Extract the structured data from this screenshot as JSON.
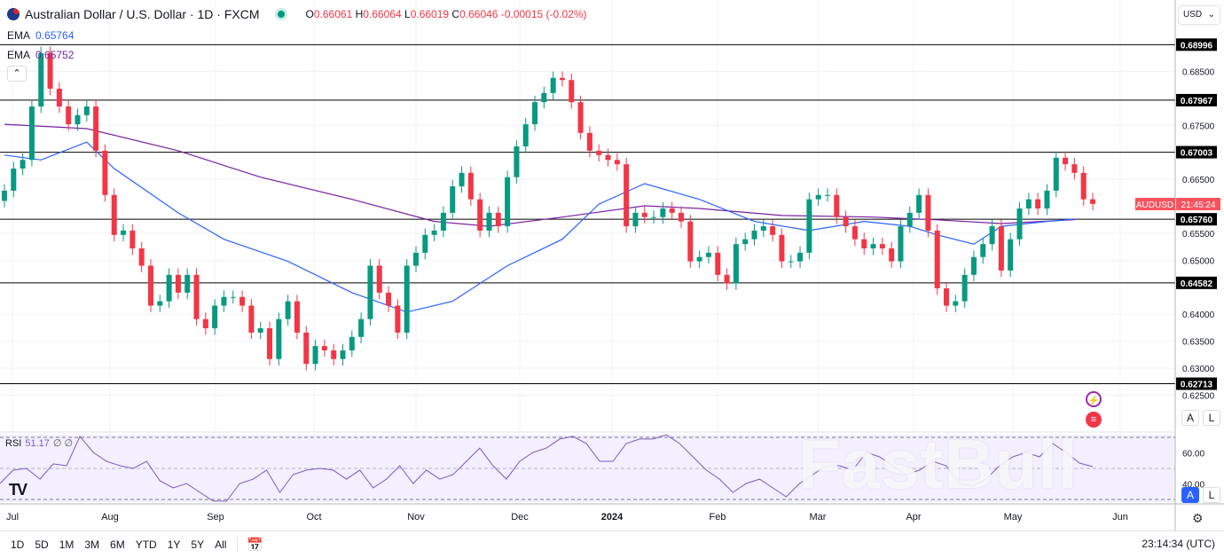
{
  "header": {
    "title": "Australian Dollar / U.S. Dollar · 1D · FXCM",
    "ohlc": {
      "o_label": "O",
      "o": "0.66061",
      "h_label": "H",
      "h": "0.66064",
      "l_label": "L",
      "l": "0.66019",
      "c_label": "C",
      "c": "0.66046",
      "change": "-0.00015 (-0.02%)"
    },
    "ema1": {
      "label": "EMA",
      "value": "0.65764"
    },
    "ema2": {
      "label": "EMA",
      "value": "0.65752"
    }
  },
  "currency_select": "USD",
  "symbol_tag": {
    "symbol": "AUDUSD",
    "countdown": "21:45:24"
  },
  "rsi_legend": {
    "label": "RSI",
    "value": "51.17",
    "extra": "∅ ∅"
  },
  "watermark": "FastBull",
  "axis_buttons": {
    "auto": "A",
    "log": "L"
  },
  "bottom_bar": {
    "ranges": [
      "1D",
      "5D",
      "1M",
      "3M",
      "6M",
      "YTD",
      "1Y",
      "5Y",
      "All"
    ],
    "clock": "23:14:34 (UTC)"
  },
  "colors": {
    "up": "#089981",
    "down": "#f23645",
    "ema_fast": "#2962ff",
    "ema_slow": "#7b1fa2",
    "rsi": "#7e57c2",
    "level_line": "#000000"
  },
  "chart_data": {
    "type": "candlestick",
    "symbol": "AUDUSD",
    "timeframe": "1D",
    "ylim": [
      0.6225,
      0.6925
    ],
    "price_ticks": [
      "0.68500",
      "0.67500",
      "0.66500",
      "0.65500",
      "0.65000",
      "0.64000",
      "0.63500",
      "0.63000",
      "0.62500"
    ],
    "levels": [
      "0.68996",
      "0.67967",
      "0.67003",
      "0.65760",
      "0.64582",
      "0.62713"
    ],
    "x_tick_labels": [
      "Jul",
      "Aug",
      "Sep",
      "Oct",
      "Nov",
      "Dec",
      "2024",
      "Feb",
      "Mar",
      "Apr",
      "May",
      "Jun"
    ],
    "first_open": 0.661,
    "closes": [
      0.6629,
      0.667,
      0.6686,
      0.6785,
      0.6884,
      0.6818,
      0.6785,
      0.6752,
      0.6769,
      0.6785,
      0.6703,
      0.6621,
      0.6547,
      0.6555,
      0.6522,
      0.649,
      0.6416,
      0.6424,
      0.6473,
      0.644,
      0.6473,
      0.6391,
      0.6374,
      0.6416,
      0.6432,
      0.6432,
      0.6416,
      0.6366,
      0.6374,
      0.6317,
      0.6391,
      0.6424,
      0.6366,
      0.6308,
      0.6341,
      0.6333,
      0.6317,
      0.6333,
      0.6358,
      0.6391,
      0.649,
      0.644,
      0.6416,
      0.6366,
      0.649,
      0.6514,
      0.6547,
      0.6555,
      0.6588,
      0.6637,
      0.6662,
      0.6613,
      0.6555,
      0.6588,
      0.6563,
      0.6654,
      0.6711,
      0.6752,
      0.6793,
      0.681,
      0.6838,
      0.6834,
      0.6793,
      0.6736,
      0.6703,
      0.6695,
      0.6686,
      0.6678,
      0.6563,
      0.6588,
      0.658,
      0.658,
      0.6596,
      0.6588,
      0.6572,
      0.6498,
      0.6506,
      0.6514,
      0.6473,
      0.6457,
      0.653,
      0.6539,
      0.6555,
      0.6563,
      0.6547,
      0.6498,
      0.6498,
      0.6514,
      0.6613,
      0.6621,
      0.6621,
      0.658,
      0.6563,
      0.6539,
      0.6522,
      0.653,
      0.6522,
      0.6498,
      0.6563,
      0.6588,
      0.6621,
      0.6555,
      0.6448,
      0.6416,
      0.6424,
      0.6473,
      0.6506,
      0.653,
      0.6563,
      0.6481,
      0.6539,
      0.6596,
      0.6613,
      0.6596,
      0.6629,
      0.669,
      0.6678,
      0.6662,
      0.6613,
      0.66046
    ],
    "ema_fast": {
      "label": "EMA",
      "points": [
        [
          0,
          0.6695
        ],
        [
          4,
          0.6686
        ],
        [
          9,
          0.6719
        ],
        [
          12,
          0.667
        ],
        [
          19,
          0.6588
        ],
        [
          24,
          0.6539
        ],
        [
          31,
          0.6498
        ],
        [
          38,
          0.644
        ],
        [
          44,
          0.6404
        ],
        [
          49,
          0.6424
        ],
        [
          55,
          0.649
        ],
        [
          61,
          0.6539
        ],
        [
          65,
          0.6604
        ],
        [
          70,
          0.6642
        ],
        [
          76,
          0.6613
        ],
        [
          82,
          0.6572
        ],
        [
          88,
          0.6555
        ],
        [
          94,
          0.6572
        ],
        [
          99,
          0.6563
        ],
        [
          102,
          0.6547
        ],
        [
          106,
          0.653
        ],
        [
          109,
          0.6563
        ],
        [
          114,
          0.6572
        ],
        [
          117,
          0.65764
        ]
      ]
    },
    "ema_slow": {
      "label": "EMA",
      "points": [
        [
          0,
          0.6752
        ],
        [
          9,
          0.6744
        ],
        [
          19,
          0.6703
        ],
        [
          28,
          0.6654
        ],
        [
          38,
          0.6613
        ],
        [
          47,
          0.6572
        ],
        [
          53,
          0.6563
        ],
        [
          61,
          0.658
        ],
        [
          70,
          0.6601
        ],
        [
          76,
          0.6596
        ],
        [
          85,
          0.6583
        ],
        [
          95,
          0.658
        ],
        [
          102,
          0.6575
        ],
        [
          109,
          0.6568
        ],
        [
          117,
          0.65752
        ]
      ]
    },
    "rsi": {
      "label": "RSI",
      "bands": [
        30,
        70
      ],
      "ticks": [
        "60.00",
        "40.00"
      ],
      "values": [
        40.3,
        48.9,
        50,
        43.1,
        52.9,
        51.7,
        70.6,
        60.3,
        54.6,
        51.7,
        50,
        54.6,
        42,
        37.4,
        40.3,
        34.6,
        28.9,
        28.9,
        40.3,
        43.1,
        48.9,
        34.6,
        46,
        48.9,
        50,
        48.9,
        43.1,
        48.9,
        37.4,
        43.1,
        51.7,
        40.3,
        48.9,
        43.1,
        46,
        54.6,
        63.1,
        51.7,
        43.1,
        54.6,
        60.3,
        63.1,
        68.9,
        70.6,
        66,
        54.6,
        54.6,
        66,
        68.9,
        68.9,
        71.7,
        66,
        57.4,
        48.9,
        43.1,
        34.6,
        40.3,
        43.1,
        37.4,
        31.7,
        40.3,
        46,
        51.7,
        51.7,
        48.9,
        60.3,
        57.4,
        51.7,
        46,
        48.9,
        54.6,
        51.7,
        40.3,
        38.6,
        43.1,
        51.7,
        57.4,
        60.3,
        57.4,
        66,
        60.3,
        53.4,
        51.17
      ]
    }
  }
}
